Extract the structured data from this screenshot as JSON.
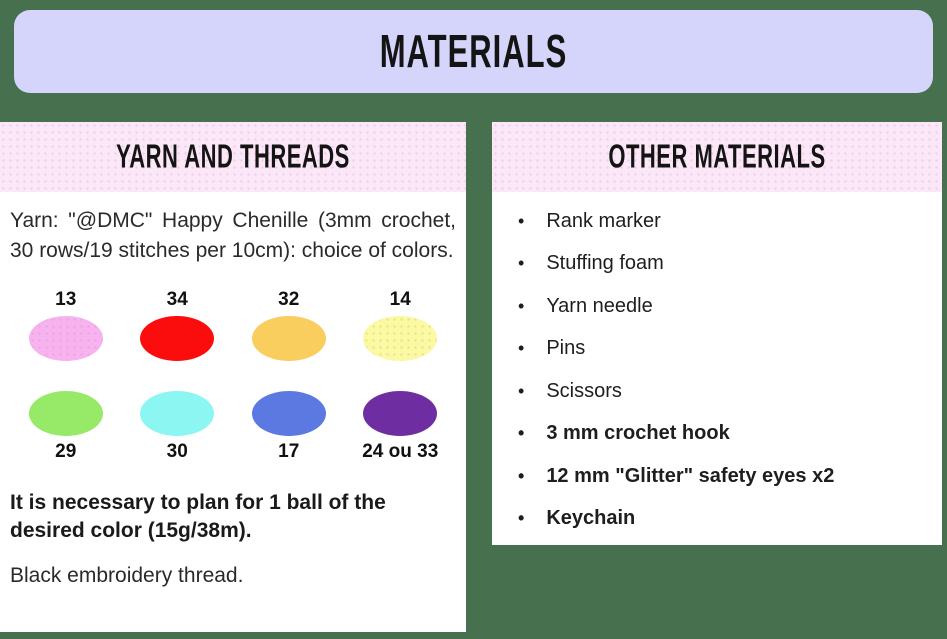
{
  "page": {
    "background_color": "#47714e"
  },
  "header": {
    "title": "MATERIALS",
    "bg_color": "#d5d4fb"
  },
  "yarn_panel": {
    "title": "YARN AND THREADS",
    "header_bg_color": "#fbe7f7",
    "intro": "Yarn: \"@DMC\" Happy Chenille (3mm crochet, 30 rows/19 stitches per 10cm): choice of colors.",
    "swatch_rows": [
      {
        "label_position": "above",
        "swatches": [
          {
            "label": "13",
            "color": "#f9b2f0"
          },
          {
            "label": "34",
            "color": "#fc0d0d"
          },
          {
            "label": "32",
            "color": "#f9cd5e"
          },
          {
            "label": "14",
            "color": "#fbf9a2"
          }
        ]
      },
      {
        "label_position": "below",
        "swatches": [
          {
            "label": "29",
            "color": "#97e968"
          },
          {
            "label": "30",
            "color": "#8cf6f2"
          },
          {
            "label": "17",
            "color": "#5b79e0"
          },
          {
            "label": "24 ou 33",
            "color": "#6e2da0"
          }
        ]
      }
    ],
    "note_bold": "It is necessary to plan for 1 ball of the desired color (15g/38m).",
    "note_regular": "Black embroidery thread."
  },
  "other_panel": {
    "title": "OTHER MATERIALS",
    "bullet_glyph": "•",
    "items": [
      {
        "label": "Rank marker",
        "bold": false
      },
      {
        "label": "Stuffing foam",
        "bold": false
      },
      {
        "label": "Yarn needle",
        "bold": false
      },
      {
        "label": "Pins",
        "bold": false
      },
      {
        "label": "Scissors",
        "bold": false
      },
      {
        "label": "3 mm crochet hook",
        "bold": true
      },
      {
        "label": "12 mm \"Glitter\" safety eyes x2",
        "bold": true
      },
      {
        "label": "Keychain",
        "bold": true
      }
    ]
  }
}
